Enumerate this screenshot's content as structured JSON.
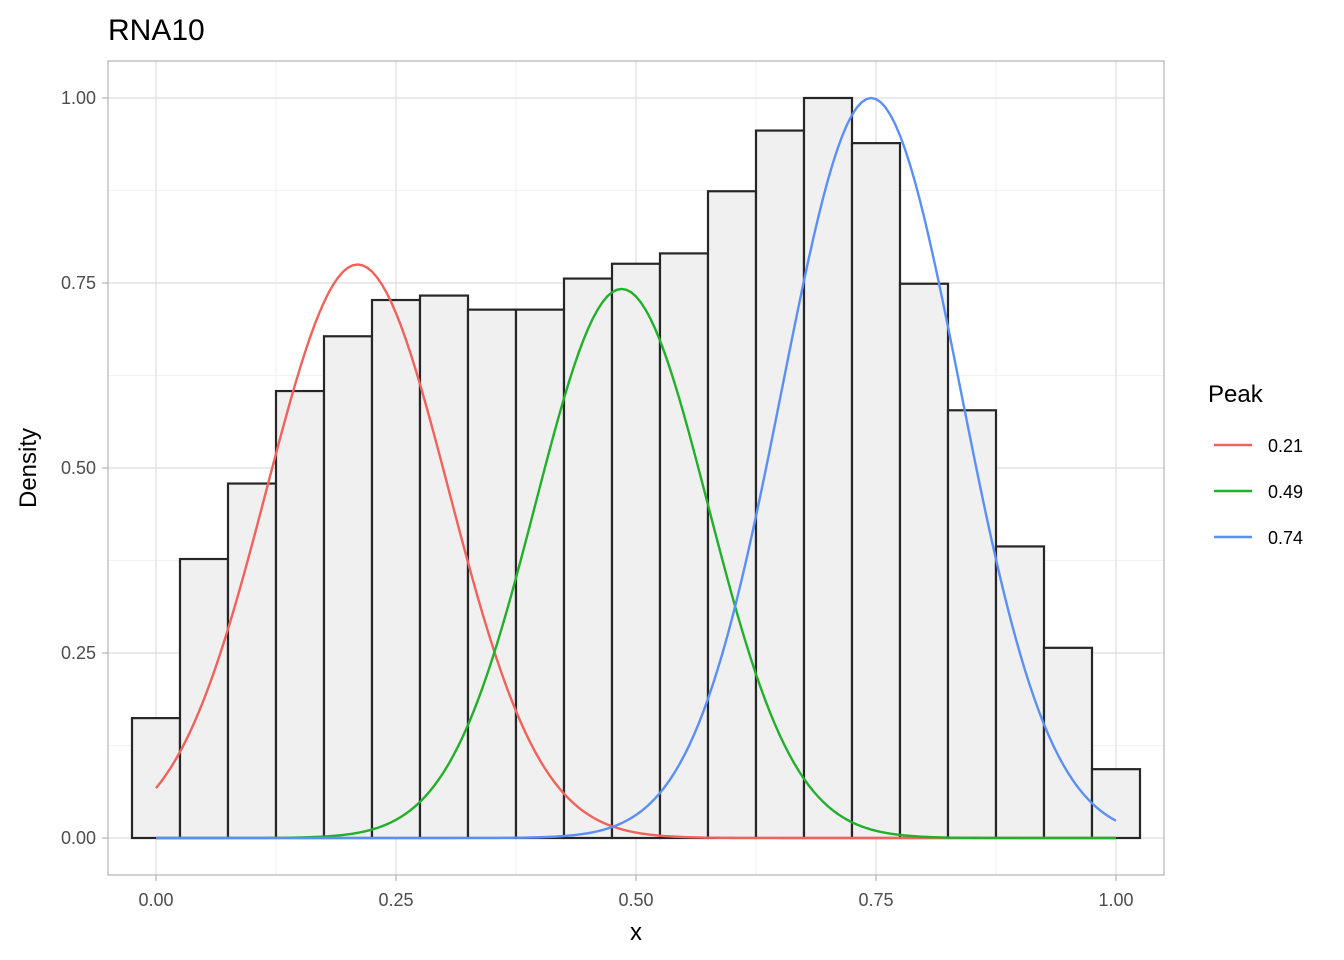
{
  "chart_data": {
    "type": "bar",
    "title": "RNA10",
    "xlabel": "x",
    "ylabel": "Density",
    "xlim": [
      -0.05,
      1.05
    ],
    "ylim": [
      -0.05,
      1.05
    ],
    "x_ticks": [
      0.0,
      0.25,
      0.5,
      0.75,
      1.0
    ],
    "x_tick_labels": [
      "0.00",
      "0.25",
      "0.50",
      "0.75",
      "1.00"
    ],
    "y_ticks": [
      0.0,
      0.25,
      0.5,
      0.75,
      1.0
    ],
    "y_tick_labels": [
      "0.00",
      "0.25",
      "0.50",
      "0.75",
      "1.00"
    ],
    "grid": true,
    "histogram": {
      "bin_width": 0.05,
      "bin_centers": [
        0.0,
        0.05,
        0.1,
        0.15,
        0.2,
        0.25,
        0.3,
        0.35,
        0.4,
        0.45,
        0.5,
        0.55,
        0.6,
        0.65,
        0.7,
        0.75,
        0.8,
        0.85,
        0.9,
        0.95,
        1.0
      ],
      "values": [
        0.162,
        0.377,
        0.479,
        0.604,
        0.678,
        0.727,
        0.733,
        0.714,
        0.714,
        0.756,
        0.776,
        0.79,
        0.874,
        0.956,
        1.0,
        0.939,
        0.749,
        0.578,
        0.394,
        0.257,
        0.093
      ],
      "fill": "#f0f0f0",
      "stroke": "#262626"
    },
    "legend": {
      "title": "Peak",
      "position": "right"
    },
    "series": [
      {
        "name": "0.21",
        "type": "gaussian",
        "mean": 0.21,
        "sd": 0.095,
        "peak": 0.775,
        "color": "#f0625b"
      },
      {
        "name": "0.49",
        "type": "gaussian",
        "mean": 0.485,
        "sd": 0.09,
        "peak": 0.742,
        "color": "#22b02a"
      },
      {
        "name": "0.74",
        "type": "gaussian",
        "mean": 0.745,
        "sd": 0.093,
        "peak": 1.0,
        "color": "#5b8ff6"
      }
    ]
  }
}
